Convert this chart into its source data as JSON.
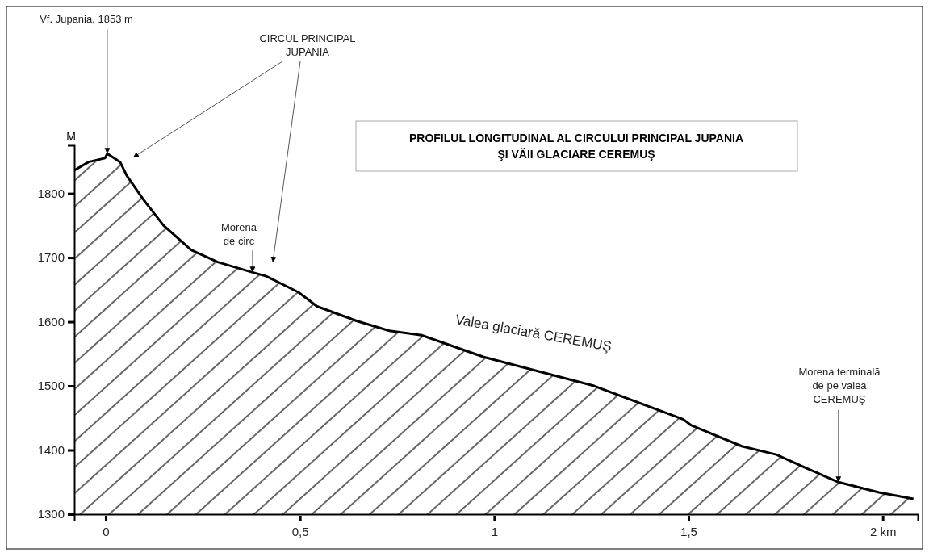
{
  "chart_data": {
    "type": "area",
    "title": "PROFILUL LONGITUDINAL AL CIRCULUI PRINCIPAL JUPANIA\nŞI VĂII GLACIARE CEREMUŞ",
    "ylabel": "M",
    "x": [
      -0.081,
      -0.044,
      -0.002,
      0.004,
      0.037,
      0.054,
      0.095,
      0.149,
      0.22,
      0.288,
      0.378,
      0.413,
      0.496,
      0.544,
      0.647,
      0.73,
      0.813,
      0.973,
      1.257,
      1.486,
      1.506,
      1.637,
      1.726,
      1.803,
      1.886,
      1.99,
      2.079
    ],
    "series": [
      {
        "color": "#000000",
        "values": [
          1836,
          1849,
          1855,
          1862,
          1849,
          1828,
          1792,
          1750,
          1712,
          1693,
          1677,
          1671,
          1646,
          1624,
          1601,
          1586,
          1579,
          1545,
          1500,
          1448,
          1439,
          1406,
          1393,
          1372,
          1350,
          1334,
          1324
        ]
      }
    ],
    "xlim": [
      -0.081,
      2.09
    ],
    "ylim": [
      1300,
      1875
    ],
    "xticks": [
      0,
      {
        "value": 0.5,
        "label": "0,5"
      },
      1,
      {
        "value": 1.5,
        "label": "1,5"
      },
      {
        "value": 2,
        "label": "2 km"
      }
    ],
    "yticks": [
      1300,
      1400,
      1500,
      1600,
      1700,
      1800
    ],
    "annotations": [
      {
        "text": "Vf. Jupania, 1853 m",
        "x": 0.004,
        "y": 1862
      },
      "CIRCUL PRINCIPAL\nJUPANIA",
      {
        "text": "Morenă\nde circ",
        "x": 0.378,
        "y": 1677
      },
      "Valea glaciară CEREMUŞ",
      {
        "text": "Morena terminală\nde pe valea\nCEREMUŞ",
        "x": 1.886,
        "y": 1350
      }
    ]
  }
}
